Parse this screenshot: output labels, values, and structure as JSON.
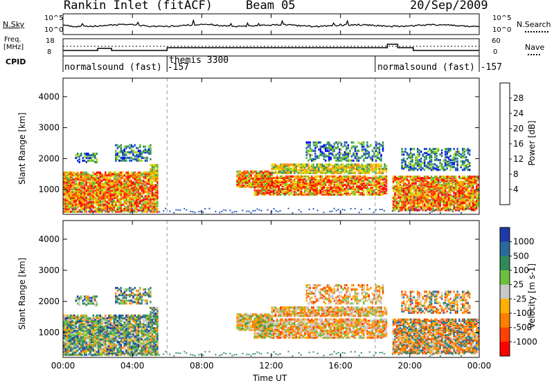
{
  "header": {
    "title": "Rankin Inlet (fitACF)",
    "beam": "Beam 05",
    "date": "20/Sep/2009"
  },
  "noise_panel": {
    "left_label": "N.Sky",
    "right_label": "N.Search",
    "left_ticks": [
      "10^5",
      "10^0"
    ],
    "right_ticks": [
      "10^5",
      "10^0"
    ]
  },
  "freq_panel": {
    "left_label_1": "Freq.",
    "left_label_2": "[MHz]",
    "right_label": "Nave",
    "left_ticks": [
      "18",
      "8"
    ],
    "right_ticks": [
      "60",
      "0"
    ]
  },
  "cpid": {
    "label": "CPID",
    "segments": [
      {
        "text": "normalsound (fast) -157",
        "start_hour": 0.0,
        "end_hour": 6.0
      },
      {
        "text": "themis 3300",
        "start_hour": 6.0,
        "end_hour": 18.0
      },
      {
        "text": "normalsound (fast) -157",
        "start_hour": 18.0,
        "end_hour": 24.0
      }
    ]
  },
  "power_colorbar": {
    "title": "Power [dB]",
    "ticks": [
      "28",
      "24",
      "20",
      "16",
      "12",
      "8",
      "4"
    ],
    "colors": [
      "#ff0000",
      "#ff4400",
      "#ff8a00",
      "#ffb000",
      "#f0dc00",
      "#a8d800",
      "#56b848",
      "#2a8c5a",
      "#1a50c0",
      "#0000ff"
    ]
  },
  "velocity_colorbar": {
    "title": "Velocity [m s-1]",
    "ticks": [
      "1000",
      "500",
      "100",
      "25",
      "-25",
      "-100",
      "-500",
      "-1000"
    ],
    "colors": [
      "#1e3aa8",
      "#2a6a9c",
      "#2f8a5a",
      "#6dbf3e",
      "#c8c8c8",
      "#ffb000",
      "#ff8000",
      "#ff4000",
      "#ff0000"
    ]
  },
  "chart_data": [
    {
      "type": "heatmap",
      "name": "power",
      "ylabel": "Slant Range [km]",
      "yticks": [
        "1000",
        "2000",
        "3000",
        "4000"
      ],
      "ylim": [
        200,
        4600
      ],
      "xlim": [
        0,
        24
      ],
      "scatter_echoes": [
        {
          "t0": 0.0,
          "t1": 5.4,
          "r0": 250,
          "r1": 1550,
          "level": "high"
        },
        {
          "t0": 0.7,
          "t1": 2.0,
          "r0": 1850,
          "r1": 2150,
          "level": "low"
        },
        {
          "t0": 3.0,
          "t1": 5.0,
          "r0": 1900,
          "r1": 2400,
          "level": "low"
        },
        {
          "t0": 5.0,
          "t1": 5.4,
          "r0": 1350,
          "r1": 1800,
          "level": "mid"
        },
        {
          "t0": 10.0,
          "t1": 12.0,
          "r0": 1050,
          "r1": 1550,
          "level": "high"
        },
        {
          "t0": 11.0,
          "t1": 18.7,
          "r0": 800,
          "r1": 1400,
          "level": "high"
        },
        {
          "t0": 12.0,
          "t1": 18.7,
          "r0": 1500,
          "r1": 1800,
          "level": "mid"
        },
        {
          "t0": 14.0,
          "t1": 18.5,
          "r0": 1900,
          "r1": 2500,
          "level": "low"
        },
        {
          "t0": 19.0,
          "t1": 24.0,
          "r0": 300,
          "r1": 1400,
          "level": "high"
        },
        {
          "t0": 19.5,
          "t1": 23.5,
          "r0": 1600,
          "r1": 2300,
          "level": "low"
        }
      ]
    },
    {
      "type": "heatmap",
      "name": "velocity",
      "ylabel": "Slant Range [km]",
      "xlabel": "Time UT",
      "xticks": [
        "00:00",
        "04:00",
        "08:00",
        "12:00",
        "16:00",
        "20:00",
        "00:00"
      ],
      "yticks": [
        "1000",
        "2000",
        "3000",
        "4000"
      ],
      "ylim": [
        200,
        4600
      ],
      "xlim": [
        0,
        24
      ]
    }
  ]
}
